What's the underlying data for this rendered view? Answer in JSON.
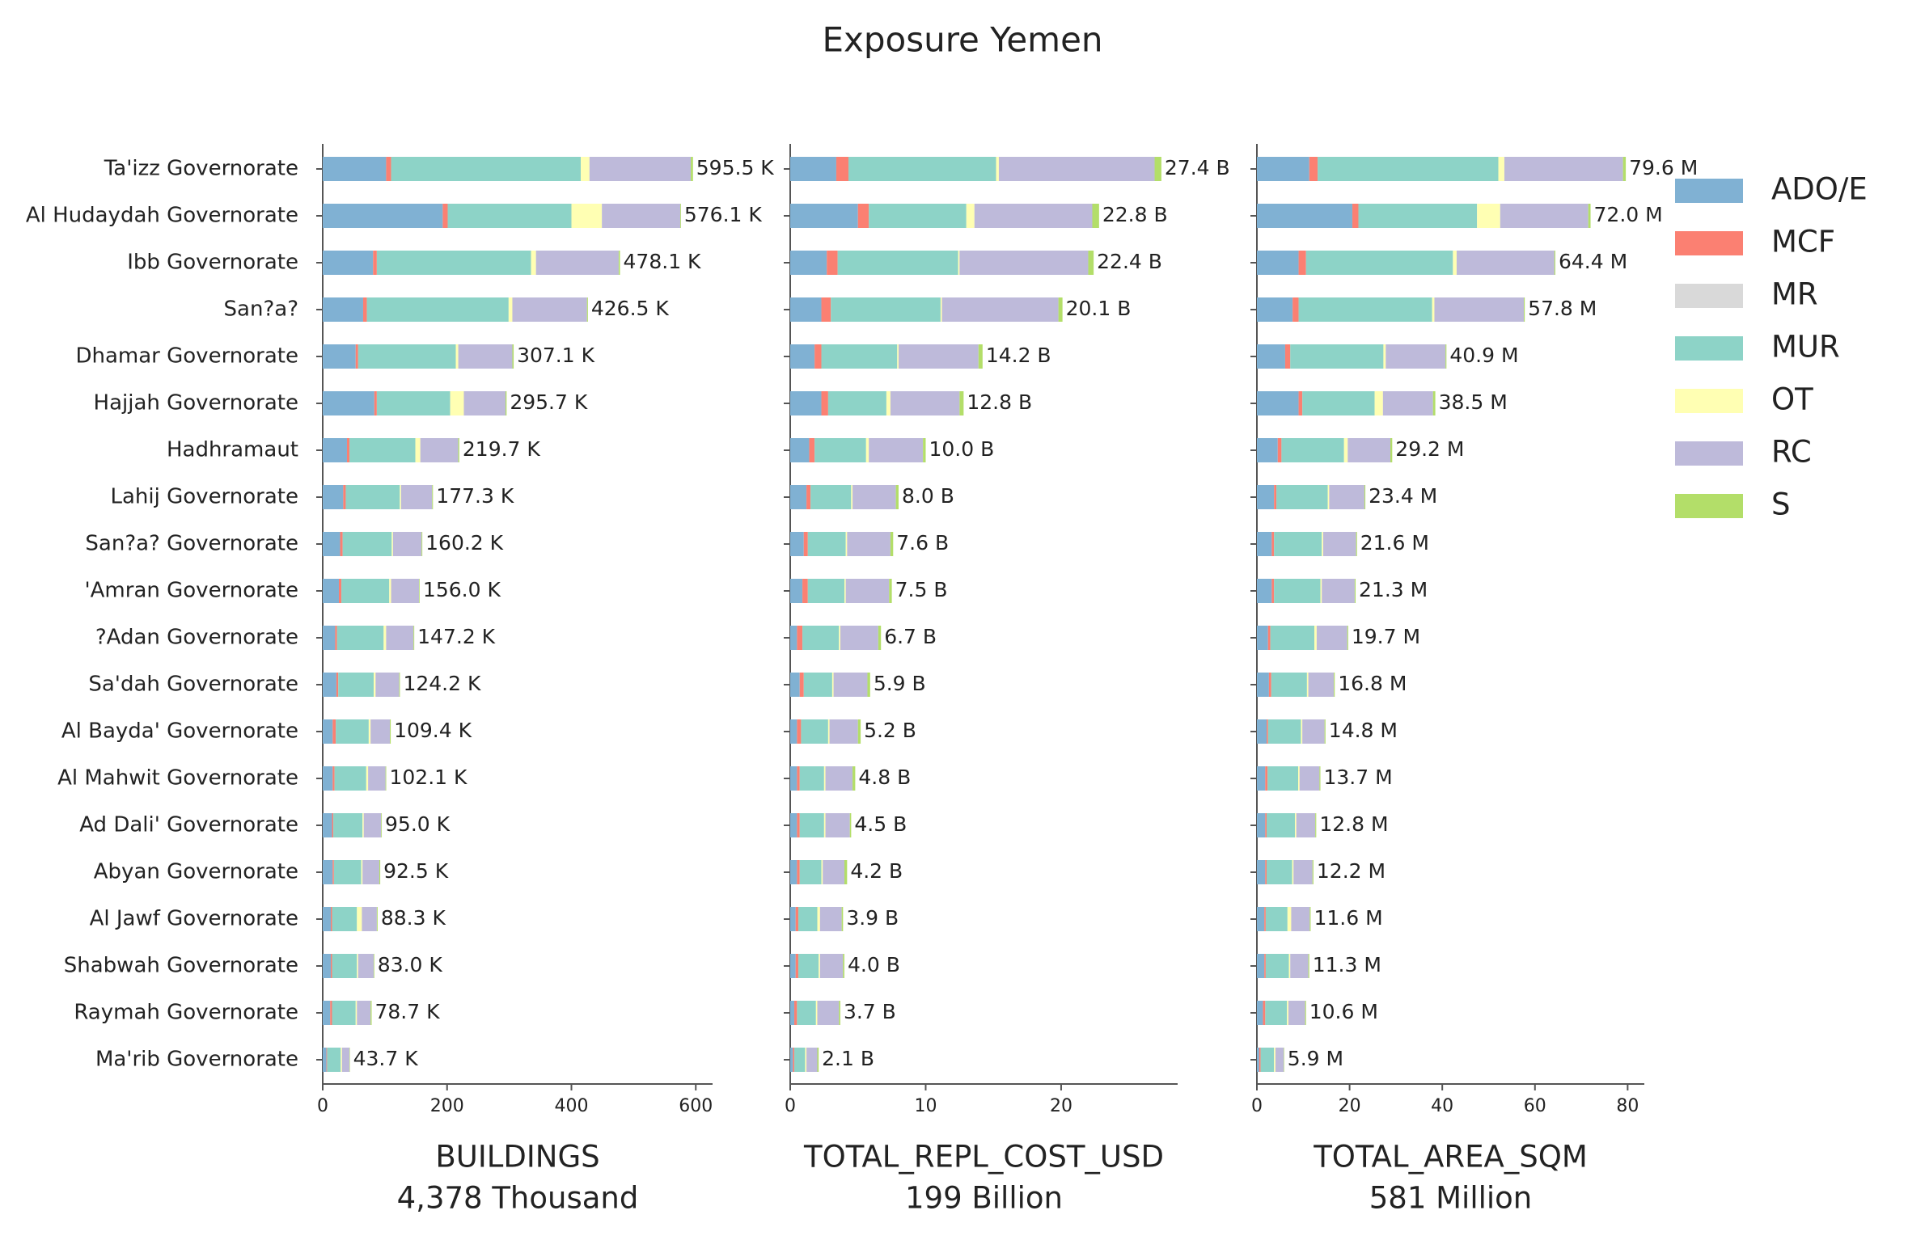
{
  "title": "Exposure Yemen",
  "chart_data": [
    {
      "type": "bar",
      "orientation": "horizontal",
      "stacked": true,
      "legend": "upper right",
      "xlabel": "BUILDINGS",
      "xlabel_sub": "4,378 Thousand",
      "categories": [
        "Ta'izz Governorate",
        "Al Hudaydah Governorate",
        "Ibb Governorate",
        "San?a?",
        "Dhamar Governorate",
        "Hajjah Governorate",
        "Hadhramaut",
        "Lahij Governorate",
        "San?a? Governorate",
        "'Amran Governorate",
        "?Adan Governorate",
        "Sa'dah Governorate",
        "Al Bayda' Governorate",
        "Al Mahwit Governorate",
        "Ad Dali' Governorate",
        "Abyan Governorate",
        "Al Jawf Governorate",
        "Shabwah Governorate",
        "Raymah Governorate",
        "Ma'rib Governorate"
      ],
      "xlim": [
        0,
        627
      ],
      "xticks": [
        0,
        200,
        400,
        600
      ],
      "series": [
        {
          "name": "ADO/E",
          "color": "#80b1d3",
          "values": [
            102,
            193,
            81,
            65,
            53,
            83,
            39,
            33,
            28,
            26,
            20,
            22,
            16,
            16,
            15,
            16,
            13,
            13,
            12,
            6
          ]
        },
        {
          "name": "MCF",
          "color": "#fb8072",
          "values": [
            8,
            8,
            6,
            6,
            4,
            4,
            4,
            4,
            4,
            4,
            3,
            3,
            5,
            3,
            2,
            2,
            2,
            2,
            3,
            1
          ]
        },
        {
          "name": "MR",
          "color": "#d9d9d9",
          "values": [
            0,
            0,
            0,
            0,
            0,
            0,
            0,
            0,
            0,
            0,
            0,
            0,
            0,
            0,
            0,
            0,
            0,
            0,
            0,
            0
          ]
        },
        {
          "name": "MUR",
          "color": "#8dd3c7",
          "values": [
            305,
            199,
            248,
            228,
            157,
            118,
            106,
            87,
            79,
            77,
            75,
            57,
            53,
            51,
            47,
            44,
            40,
            40,
            38,
            22
          ]
        },
        {
          "name": "OT",
          "color": "#ffffb3",
          "values": [
            14,
            49,
            8,
            6,
            4,
            22,
            8,
            2,
            2,
            3,
            4,
            3,
            3,
            3,
            2,
            2,
            8,
            2,
            2,
            2
          ]
        },
        {
          "name": "RC",
          "color": "#bebada",
          "values": [
            163,
            126,
            133,
            120,
            87,
            67,
            61,
            50,
            46,
            45,
            44,
            38,
            31,
            28,
            28,
            27,
            24,
            25,
            22,
            12
          ]
        },
        {
          "name": "S",
          "color": "#b3de69",
          "values": [
            3.5,
            1.1,
            2.1,
            1.5,
            2.1,
            1.7,
            1.7,
            1.3,
            1.2,
            1,
            1.2,
            1.2,
            1.4,
            1.1,
            1,
            1.5,
            1.3,
            1,
            1.7,
            0.7
          ]
        }
      ],
      "totals": [
        {
          "value": 595.5,
          "label": "595.5 K"
        },
        {
          "value": 576.1,
          "label": "576.1 K"
        },
        {
          "value": 478.1,
          "label": "478.1 K"
        },
        {
          "value": 426.5,
          "label": "426.5 K"
        },
        {
          "value": 307.1,
          "label": "307.1 K"
        },
        {
          "value": 295.7,
          "label": "295.7 K"
        },
        {
          "value": 219.7,
          "label": "219.7 K"
        },
        {
          "value": 177.3,
          "label": "177.3 K"
        },
        {
          "value": 160.2,
          "label": "160.2 K"
        },
        {
          "value": 156.0,
          "label": "156.0 K"
        },
        {
          "value": 147.2,
          "label": "147.2 K"
        },
        {
          "value": 124.2,
          "label": "124.2 K"
        },
        {
          "value": 109.4,
          "label": "109.4 K"
        },
        {
          "value": 102.1,
          "label": "102.1 K"
        },
        {
          "value": 95.0,
          "label": "95.0 K"
        },
        {
          "value": 92.5,
          "label": "92.5 K"
        },
        {
          "value": 88.3,
          "label": "88.3 K"
        },
        {
          "value": 83.0,
          "label": "83.0 K"
        },
        {
          "value": 78.7,
          "label": "78.7 K"
        },
        {
          "value": 43.7,
          "label": "43.7 K"
        }
      ]
    },
    {
      "type": "bar",
      "orientation": "horizontal",
      "stacked": true,
      "xlabel": "TOTAL_REPL_COST_USD",
      "xlabel_sub": "199 Billion",
      "xlim": [
        0,
        28.6
      ],
      "xticks": [
        0,
        10,
        20
      ],
      "series": [
        {
          "name": "ADO/E",
          "color": "#80b1d3",
          "values": [
            3.4,
            5.0,
            2.7,
            2.3,
            1.8,
            2.3,
            1.4,
            1.2,
            1.0,
            0.9,
            0.5,
            0.7,
            0.5,
            0.5,
            0.5,
            0.5,
            0.4,
            0.4,
            0.3,
            0.2
          ]
        },
        {
          "name": "MCF",
          "color": "#fb8072",
          "values": [
            0.9,
            0.8,
            0.8,
            0.7,
            0.5,
            0.5,
            0.4,
            0.3,
            0.3,
            0.4,
            0.4,
            0.3,
            0.3,
            0.2,
            0.2,
            0.2,
            0.2,
            0.2,
            0.2,
            0.1
          ]
        },
        {
          "name": "MR",
          "color": "#d9d9d9",
          "values": [
            0,
            0,
            0,
            0,
            0,
            0,
            0,
            0,
            0,
            0,
            0,
            0,
            0,
            0,
            0,
            0,
            0,
            0,
            0,
            0
          ]
        },
        {
          "name": "MUR",
          "color": "#8dd3c7",
          "values": [
            10.9,
            7.2,
            8.9,
            8.1,
            5.6,
            4.3,
            3.8,
            3.0,
            2.8,
            2.7,
            2.7,
            2.1,
            2.0,
            1.8,
            1.8,
            1.6,
            1.4,
            1.5,
            1.4,
            0.8
          ]
        },
        {
          "name": "OT",
          "color": "#ffffb3",
          "values": [
            0.2,
            0.6,
            0.1,
            0.1,
            0.1,
            0.3,
            0.2,
            0.1,
            0.1,
            0.1,
            0.1,
            0.1,
            0.1,
            0.1,
            0.1,
            0.1,
            0.2,
            0.1,
            0.1,
            0.1
          ]
        },
        {
          "name": "RC",
          "color": "#bebada",
          "values": [
            11.5,
            8.7,
            9.5,
            8.6,
            5.9,
            5.1,
            4.0,
            3.2,
            3.2,
            3.2,
            2.8,
            2.5,
            2.1,
            2.0,
            1.8,
            1.6,
            1.6,
            1.7,
            1.6,
            0.8
          ]
        },
        {
          "name": "S",
          "color": "#b3de69",
          "values": [
            0.5,
            0.5,
            0.4,
            0.3,
            0.3,
            0.3,
            0.2,
            0.2,
            0.2,
            0.2,
            0.2,
            0.2,
            0.2,
            0.2,
            0.1,
            0.2,
            0.1,
            0.1,
            0.1,
            0.1
          ]
        }
      ],
      "totals": [
        {
          "value": 27.4,
          "label": "27.4 B"
        },
        {
          "value": 22.8,
          "label": "22.8 B"
        },
        {
          "value": 22.4,
          "label": "22.4 B"
        },
        {
          "value": 20.1,
          "label": "20.1 B"
        },
        {
          "value": 14.2,
          "label": "14.2 B"
        },
        {
          "value": 12.8,
          "label": "12.8 B"
        },
        {
          "value": 10.0,
          "label": "10.0 B"
        },
        {
          "value": 8.0,
          "label": "8.0 B"
        },
        {
          "value": 7.6,
          "label": "7.6 B"
        },
        {
          "value": 7.5,
          "label": "7.5 B"
        },
        {
          "value": 6.7,
          "label": "6.7 B"
        },
        {
          "value": 5.9,
          "label": "5.9 B"
        },
        {
          "value": 5.2,
          "label": "5.2 B"
        },
        {
          "value": 4.8,
          "label": "4.8 B"
        },
        {
          "value": 4.5,
          "label": "4.5 B"
        },
        {
          "value": 4.2,
          "label": "4.2 B"
        },
        {
          "value": 3.9,
          "label": "3.9 B"
        },
        {
          "value": 4.0,
          "label": "4.0 B"
        },
        {
          "value": 3.7,
          "label": "3.7 B"
        },
        {
          "value": 2.1,
          "label": "2.1 B"
        }
      ]
    },
    {
      "type": "bar",
      "orientation": "horizontal",
      "stacked": true,
      "xlabel": "TOTAL_AREA_SQM",
      "xlabel_sub": "581 Million",
      "xlim": [
        0,
        83.6
      ],
      "xticks": [
        0,
        20,
        40,
        60,
        80
      ],
      "series": [
        {
          "name": "ADO/E",
          "color": "#80b1d3",
          "values": [
            11.3,
            20.6,
            9.0,
            7.7,
            6.1,
            9.0,
            4.5,
            3.7,
            3.2,
            3.2,
            2.4,
            2.6,
            2.1,
            1.8,
            1.8,
            1.8,
            1.6,
            1.6,
            1.3,
            0.5
          ]
        },
        {
          "name": "MCF",
          "color": "#fb8072",
          "values": [
            1.8,
            1.3,
            1.6,
            1.3,
            1.1,
            0.8,
            0.8,
            0.5,
            0.5,
            0.5,
            0.5,
            0.5,
            0.3,
            0.5,
            0.3,
            0.3,
            0.3,
            0.3,
            0.5,
            0.3
          ]
        },
        {
          "name": "MR",
          "color": "#d9d9d9",
          "values": [
            0,
            0,
            0,
            0,
            0,
            0,
            0,
            0,
            0,
            0,
            0,
            0,
            0,
            0,
            0,
            0,
            0,
            0,
            0,
            0
          ]
        },
        {
          "name": "MUR",
          "color": "#8dd3c7",
          "values": [
            39.0,
            25.6,
            31.7,
            28.8,
            20.1,
            15.6,
            13.5,
            11.1,
            10.3,
            10.0,
            9.5,
            7.7,
            7.1,
            6.6,
            6.1,
            5.5,
            4.7,
            5.0,
            4.7,
            2.9
          ]
        },
        {
          "name": "OT",
          "color": "#ffffb3",
          "values": [
            1.3,
            5.0,
            0.8,
            0.5,
            0.5,
            1.8,
            0.8,
            0.3,
            0.3,
            0.3,
            0.5,
            0.3,
            0.3,
            0.3,
            0.3,
            0.3,
            0.8,
            0.3,
            0.3,
            0.3
          ]
        },
        {
          "name": "RC",
          "color": "#bebada",
          "values": [
            25.6,
            19.0,
            21.1,
            19.3,
            12.9,
            10.8,
            9.2,
            7.6,
            7.1,
            7.1,
            6.6,
            5.5,
            4.8,
            4.3,
            4.1,
            4.1,
            4.0,
            3.9,
            3.6,
            1.8
          ]
        },
        {
          "name": "S",
          "color": "#b3de69",
          "values": [
            0.6,
            0.5,
            0.2,
            0.2,
            0.2,
            0.5,
            0.4,
            0.2,
            0.2,
            0.2,
            0.2,
            0.2,
            0.2,
            0.2,
            0.2,
            0.2,
            0.2,
            0.2,
            0.2,
            0.1
          ]
        }
      ],
      "totals": [
        {
          "value": 79.6,
          "label": "79.6 M"
        },
        {
          "value": 72.0,
          "label": "72.0 M"
        },
        {
          "value": 64.4,
          "label": "64.4 M"
        },
        {
          "value": 57.8,
          "label": "57.8 M"
        },
        {
          "value": 40.9,
          "label": "40.9 M"
        },
        {
          "value": 38.5,
          "label": "38.5 M"
        },
        {
          "value": 29.2,
          "label": "29.2 M"
        },
        {
          "value": 23.4,
          "label": "23.4 M"
        },
        {
          "value": 21.6,
          "label": "21.6 M"
        },
        {
          "value": 21.3,
          "label": "21.3 M"
        },
        {
          "value": 19.7,
          "label": "19.7 M"
        },
        {
          "value": 16.8,
          "label": "16.8 M"
        },
        {
          "value": 14.8,
          "label": "14.8 M"
        },
        {
          "value": 13.7,
          "label": "13.7 M"
        },
        {
          "value": 12.8,
          "label": "12.8 M"
        },
        {
          "value": 12.2,
          "label": "12.2 M"
        },
        {
          "value": 11.6,
          "label": "11.6 M"
        },
        {
          "value": 11.3,
          "label": "11.3 M"
        },
        {
          "value": 10.6,
          "label": "10.6 M"
        },
        {
          "value": 5.9,
          "label": "5.9 M"
        }
      ]
    }
  ]
}
